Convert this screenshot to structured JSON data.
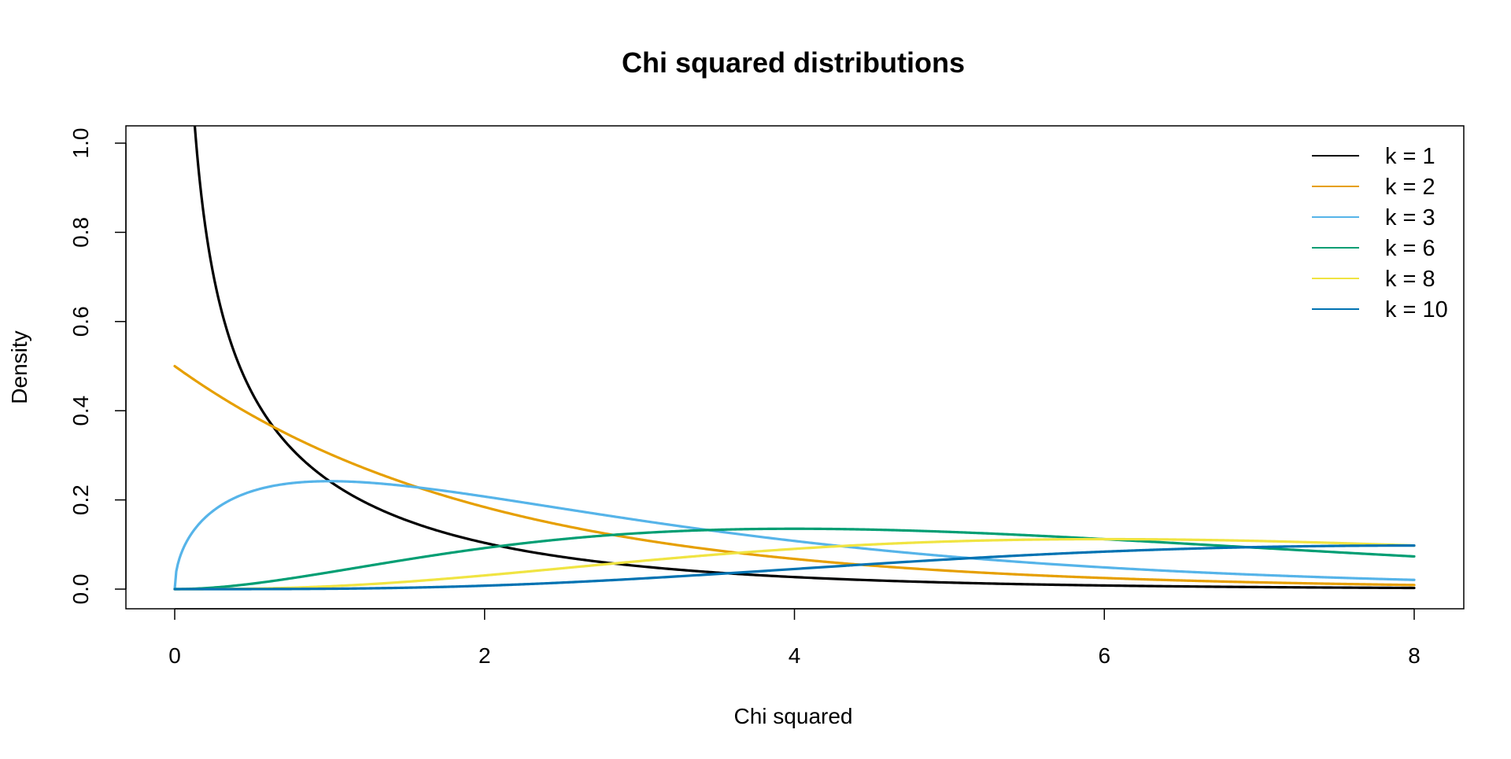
{
  "chart_data": {
    "type": "line",
    "title": "Chi squared distributions",
    "xlabel": "Chi squared",
    "ylabel": "Density",
    "xlim": [
      0,
      8
    ],
    "ylim": [
      0,
      1.0
    ],
    "x_ticks": [
      0,
      2,
      4,
      6,
      8
    ],
    "x_tick_labels": [
      "0",
      "2",
      "4",
      "6",
      "8"
    ],
    "y_ticks": [
      0,
      0.2,
      0.4,
      0.6,
      0.8,
      1.0
    ],
    "y_tick_labels": [
      "0.0",
      "0.2",
      "0.4",
      "0.6",
      "0.8",
      "1.0"
    ],
    "grid": false,
    "legend_position": "top-right",
    "series": [
      {
        "name": "k = 1",
        "df": 1,
        "color": "#000000",
        "x_range": [
          0,
          8
        ]
      },
      {
        "name": "k = 2",
        "df": 2,
        "color": "#E69F00",
        "x_range": [
          0,
          8
        ]
      },
      {
        "name": "k = 3",
        "df": 3,
        "color": "#56B4E9",
        "x_range": [
          0,
          8
        ]
      },
      {
        "name": "k = 6",
        "df": 6,
        "color": "#009E73",
        "x_range": [
          0,
          8
        ]
      },
      {
        "name": "k = 8",
        "df": 8,
        "color": "#F0E442",
        "x_range": [
          0,
          8
        ]
      },
      {
        "name": "k = 10",
        "df": 10,
        "color": "#0072B2",
        "x_range": [
          0,
          8
        ]
      }
    ]
  }
}
